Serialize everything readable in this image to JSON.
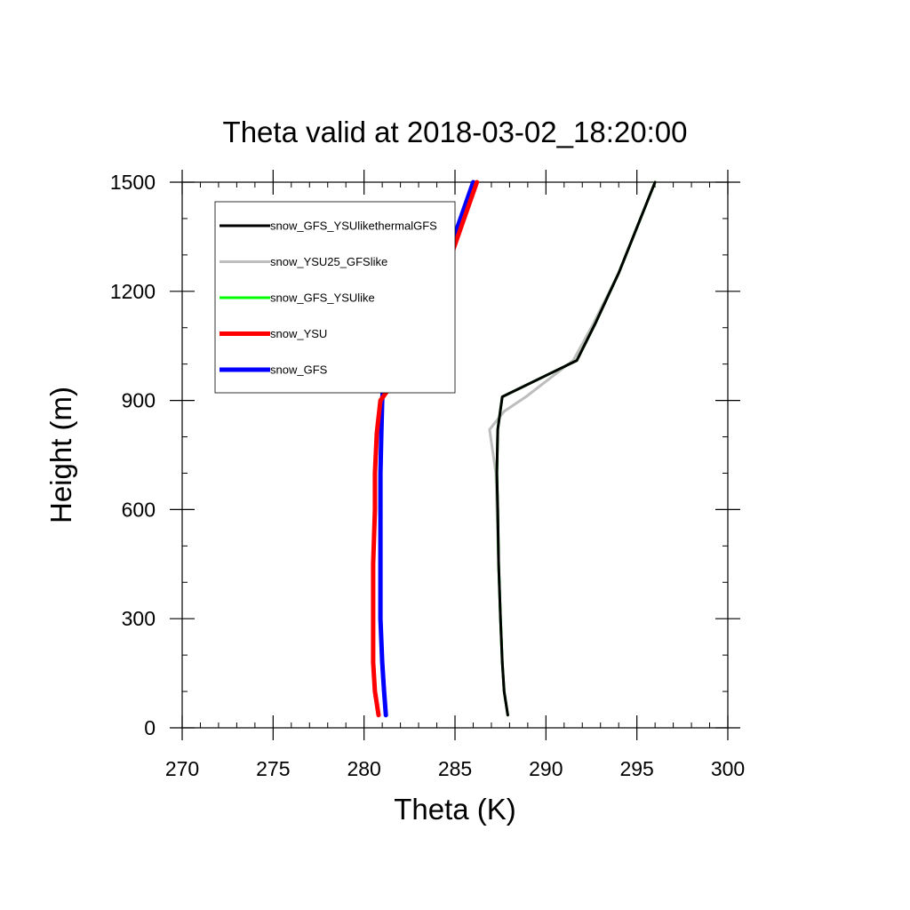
{
  "chart_data": {
    "type": "line",
    "title": "Theta valid at 2018-03-02_18:20:00",
    "xlabel": "Theta (K)",
    "ylabel": "Height (m)",
    "xlim": [
      270,
      300
    ],
    "ylim": [
      0,
      1500
    ],
    "xticks": [
      "270",
      "275",
      "280",
      "285",
      "290",
      "295",
      "300"
    ],
    "yticks": [
      "0",
      "300",
      "600",
      "900",
      "1200",
      "1500"
    ],
    "legend_placement": "top-left",
    "grid": false,
    "series": [
      {
        "name": "snow_GFS_YSUlikethermalGFS",
        "color": "#000000",
        "points": [
          [
            287.9,
            35
          ],
          [
            287.7,
            100
          ],
          [
            287.6,
            180
          ],
          [
            287.5,
            300
          ],
          [
            287.4,
            450
          ],
          [
            287.35,
            600
          ],
          [
            287.3,
            700
          ],
          [
            287.35,
            820
          ],
          [
            287.5,
            875
          ],
          [
            287.6,
            910
          ],
          [
            291.7,
            1010
          ],
          [
            292.7,
            1110
          ],
          [
            294.0,
            1250
          ],
          [
            296.0,
            1500
          ]
        ]
      },
      {
        "name": "snow_YSU25_GFSlike",
        "color": "#bdbdbd",
        "points": [
          [
            287.9,
            35
          ],
          [
            287.7,
            100
          ],
          [
            287.6,
            180
          ],
          [
            287.5,
            300
          ],
          [
            287.4,
            450
          ],
          [
            287.3,
            600
          ],
          [
            287.25,
            700
          ],
          [
            286.9,
            820
          ],
          [
            287.7,
            870
          ],
          [
            288.9,
            910
          ],
          [
            291.5,
            1010
          ],
          [
            292.6,
            1110
          ],
          [
            294.0,
            1250
          ],
          [
            296.0,
            1500
          ]
        ]
      },
      {
        "name": "snow_GFS_YSUlike",
        "color": "#00ff00",
        "points": [
          [
            287.9,
            35
          ],
          [
            287.7,
            100
          ],
          [
            287.6,
            180
          ],
          [
            287.5,
            300
          ],
          [
            287.4,
            450
          ],
          [
            287.35,
            600
          ],
          [
            287.3,
            700
          ],
          [
            287.35,
            820
          ],
          [
            287.5,
            875
          ],
          [
            287.6,
            910
          ],
          [
            291.7,
            1010
          ],
          [
            292.7,
            1110
          ],
          [
            294.0,
            1250
          ],
          [
            296.0,
            1500
          ]
        ]
      },
      {
        "name": "snow_YSU",
        "color": "#ff0000",
        "points": [
          [
            280.8,
            35
          ],
          [
            280.6,
            100
          ],
          [
            280.5,
            180
          ],
          [
            280.5,
            300
          ],
          [
            280.5,
            450
          ],
          [
            280.6,
            600
          ],
          [
            280.6,
            700
          ],
          [
            280.7,
            810
          ],
          [
            280.9,
            900
          ],
          [
            282.2,
            990
          ],
          [
            283.4,
            1090
          ],
          [
            284.8,
            1300
          ],
          [
            286.2,
            1500
          ]
        ]
      },
      {
        "name": "snow_GFS",
        "color": "#0000ff",
        "points": [
          [
            281.2,
            35
          ],
          [
            281.1,
            100
          ],
          [
            281.0,
            180
          ],
          [
            280.9,
            300
          ],
          [
            280.9,
            450
          ],
          [
            280.9,
            600
          ],
          [
            280.9,
            700
          ],
          [
            280.95,
            810
          ],
          [
            281.0,
            900
          ],
          [
            281.1,
            990
          ],
          [
            281.4,
            1090
          ],
          [
            283.5,
            1190
          ],
          [
            284.6,
            1300
          ],
          [
            286.0,
            1500
          ]
        ]
      }
    ]
  }
}
